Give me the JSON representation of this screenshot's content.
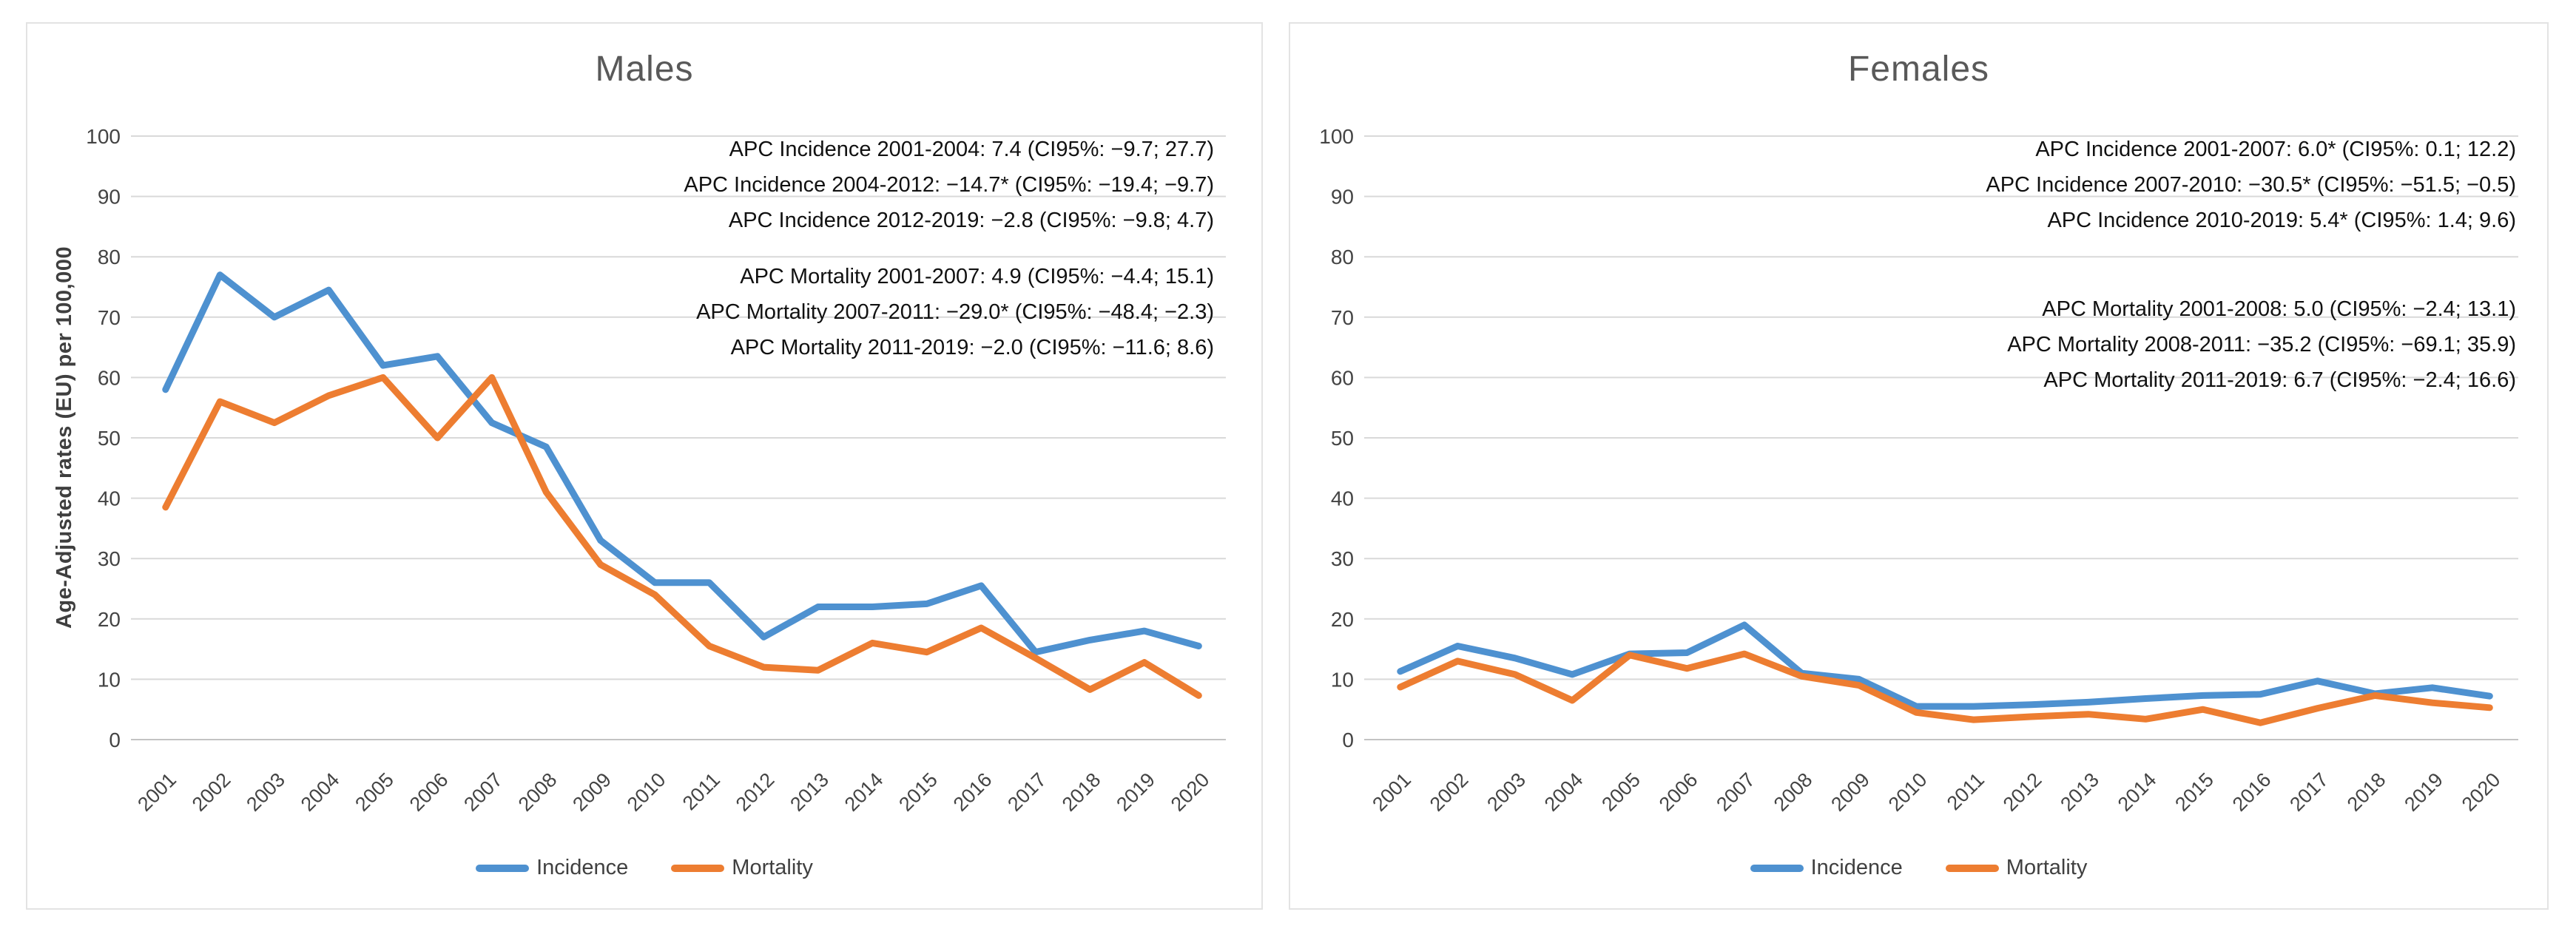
{
  "colors": {
    "incidence": "#4E91D0",
    "mortality": "#ED7D31",
    "grid": "#D9D9D9",
    "axis_line": "#C3C3C3",
    "tick_text": "#444444",
    "title_text": "#595959",
    "annotation_text": "#111111",
    "panel_border": "#E3E3E3",
    "legend_text": "#404040"
  },
  "chart_data": [
    {
      "id": "males",
      "type": "line",
      "title": "Males",
      "y_axis_title": "Age-Adjusted rates (EU) per 100,000",
      "ylim": [
        0,
        100
      ],
      "ytick_step": 10,
      "grid": true,
      "legend_position": "bottom",
      "x": [
        "2001",
        "2002",
        "2003",
        "2004",
        "2005",
        "2006",
        "2007",
        "2008",
        "2009",
        "2010",
        "2011",
        "2012",
        "2013",
        "2014",
        "2015",
        "2016",
        "2017",
        "2018",
        "2019",
        "2020"
      ],
      "series": [
        {
          "name": "Incidence",
          "color_key": "incidence",
          "values": [
            58,
            77,
            70,
            74.5,
            62,
            63.5,
            52.5,
            48.5,
            33,
            26,
            26,
            17,
            22,
            22,
            22.5,
            25.5,
            14.5,
            16.5,
            18,
            15.5
          ]
        },
        {
          "name": "Mortality",
          "color_key": "mortality",
          "values": [
            38.5,
            56,
            52.5,
            57,
            60,
            50,
            60,
            41,
            29,
            24,
            15.5,
            12,
            11.5,
            16,
            14.5,
            18.5,
            13.5,
            8.3,
            12.8,
            7.3
          ]
        }
      ],
      "annotations": {
        "incidence": [
          "APC Incidence 2001-2004: 7.4 (CI95%: −9.7; 27.7)",
          "APC Incidence 2004-2012: −14.7* (CI95%: −19.4; −9.7)",
          "APC Incidence 2012-2019: −2.8 (CI95%: −9.8; 4.7)"
        ],
        "mortality": [
          "APC Mortality 2001-2007: 4.9 (CI95%: −4.4; 15.1)",
          "APC Mortality 2007-2011: −29.0* (CI95%: −48.4; −2.3)",
          "APC Mortality 2011-2019: −2.0 (CI95%: −11.6; 8.6)"
        ]
      },
      "legend": [
        "Incidence",
        "Mortality"
      ]
    },
    {
      "id": "females",
      "type": "line",
      "title": "Females",
      "ylim": [
        0,
        100
      ],
      "ytick_step": 10,
      "grid": true,
      "legend_position": "bottom",
      "x": [
        "2001",
        "2002",
        "2003",
        "2004",
        "2005",
        "2006",
        "2007",
        "2008",
        "2009",
        "2010",
        "2011",
        "2012",
        "2013",
        "2014",
        "2015",
        "2016",
        "2017",
        "2018",
        "2019",
        "2020"
      ],
      "series": [
        {
          "name": "Incidence",
          "color_key": "incidence",
          "values": [
            11.3,
            15.5,
            13.5,
            10.8,
            14.2,
            14.4,
            19,
            11,
            10,
            5.5,
            5.5,
            5.8,
            6.2,
            6.8,
            7.3,
            7.5,
            9.7,
            7.6,
            8.6,
            7.2
          ]
        },
        {
          "name": "Mortality",
          "color_key": "mortality",
          "values": [
            8.7,
            13,
            10.8,
            6.5,
            14,
            11.8,
            14.2,
            10.5,
            9,
            4.5,
            3.3,
            3.8,
            4.2,
            3.4,
            5,
            2.8,
            5.2,
            7.3,
            6.1,
            5.3
          ]
        }
      ],
      "annotations": {
        "incidence": [
          "APC Incidence 2001-2007: 6.0* (CI95%: 0.1; 12.2)",
          "APC Incidence 2007-2010: −30.5* (CI95%: −51.5; −0.5)",
          "APC Incidence 2010-2019: 5.4* (CI95%: 1.4; 9.6)"
        ],
        "mortality": [
          "APC Mortality 2001-2008: 5.0 (CI95%: −2.4; 13.1)",
          "APC Mortality 2008-2011: −35.2 (CI95%: −69.1; 35.9)",
          "APC Mortality 2011-2019: 6.7 (CI95%: −2.4; 16.6)"
        ]
      },
      "legend": [
        "Incidence",
        "Mortality"
      ]
    }
  ]
}
